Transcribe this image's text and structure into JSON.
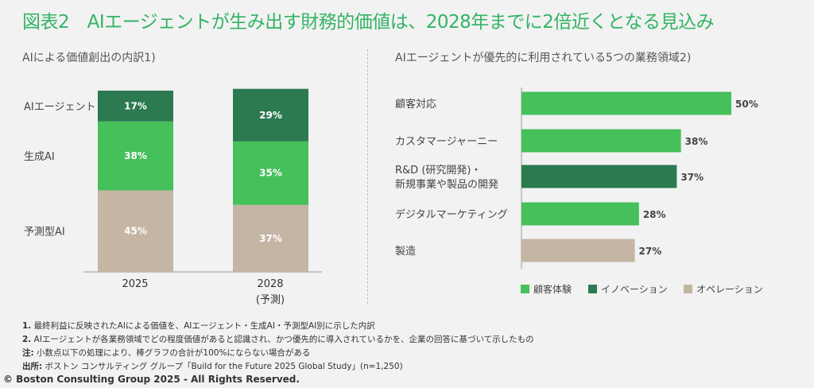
{
  "title": "図表2　AIエージェントが生み出す財務的価値は、2028年までに2倍近くとなる見込み",
  "colors": {
    "title": "#32b464",
    "light_green": "#45c05a",
    "dark_green": "#2b7a50",
    "beige": "#c4b5a5"
  },
  "chart_data": [
    {
      "type": "stacked-bar",
      "title": "AIによる価値創出の内訳1)",
      "categories": [
        "2025",
        "2028\n(予測)"
      ],
      "category_labels": [
        "2025",
        "2028",
        "(予測)"
      ],
      "series": [
        {
          "name": "予測型AI",
          "values": [
            45,
            37
          ],
          "color": "#c4b5a5"
        },
        {
          "name": "生成AI",
          "values": [
            38,
            35
          ],
          "color": "#45c05a"
        },
        {
          "name": "AIエージェント",
          "values": [
            17,
            29
          ],
          "color": "#2b7a50"
        }
      ],
      "data_labels": [
        [
          "45%",
          "37%"
        ],
        [
          "38%",
          "35%"
        ],
        [
          "17%",
          "29%"
        ]
      ],
      "ylim": [
        0,
        100
      ]
    },
    {
      "type": "bar",
      "orientation": "horizontal",
      "title": "AIエージェントが優先的に利用されている5つの業務領域2)",
      "categories": [
        "顧客対応",
        "カスタマージャーニー",
        "R&D (研究開発)・\n新規事業や製品の開発",
        "デジタルマーケティング",
        "製造"
      ],
      "values": [
        50,
        38,
        37,
        28,
        27
      ],
      "data_labels": [
        "50%",
        "38%",
        "37%",
        "28%",
        "27%"
      ],
      "groups": [
        "顧客体験",
        "顧客体験",
        "イノベーション",
        "顧客体験",
        "オペレーション"
      ],
      "legend": [
        {
          "name": "顧客体験",
          "color": "#45c05a"
        },
        {
          "name": "イノベーション",
          "color": "#2b7a50"
        },
        {
          "name": "オペレーション",
          "color": "#c4b5a5"
        }
      ],
      "legend_position": "bottom-right",
      "xlim": [
        0,
        50
      ]
    }
  ],
  "footnotes": [
    {
      "mark": "1.",
      "text": "最終利益に反映されたAIによる価値を、AIエージェント・生成AI・予測型AI別に示した内訳"
    },
    {
      "mark": "2.",
      "text": "AIエージェントが各業務領域でどの程度価値があると認識され、かつ優先的に導入されているかを、企業の回答に基づいて示したもの"
    },
    {
      "mark": "注:",
      "text": "小数点以下の処理により、棒グラフの合計が100%にならない場合がある"
    },
    {
      "mark": "出所:",
      "text": "ボストン コンサルティング グループ「Build for the Future 2025 Global Study」(n=1,250)"
    }
  ],
  "copyright": "© Boston Consulting Group 2025 - All Rights Reserved."
}
